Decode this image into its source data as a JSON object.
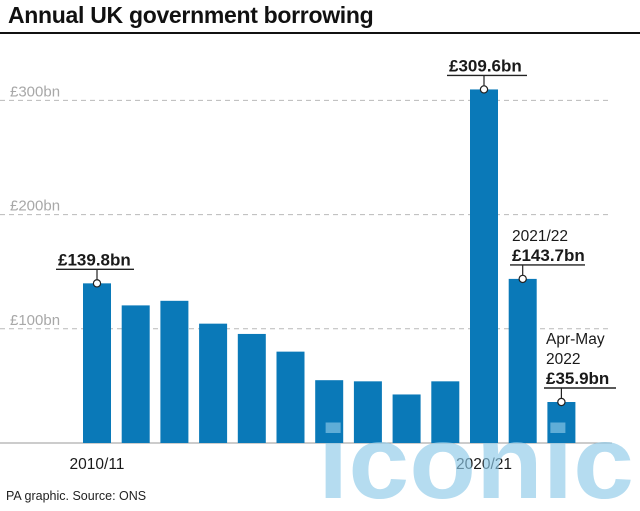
{
  "title": "Annual UK government borrowing",
  "source": "PA graphic. Source: ONS",
  "watermark": "iconic",
  "colors": {
    "bar": "#0a79b8",
    "grid": "#b9b9b9",
    "tick_label": "#a8a8a8",
    "text": "#1a1a1a",
    "watermark": "#8ec9e8"
  },
  "chart_data": {
    "type": "bar",
    "title": "Annual UK government borrowing",
    "xlabel": "",
    "ylabel": "",
    "ylim": [
      0,
      320
    ],
    "grid": true,
    "unit": "£bn",
    "yticks": [
      {
        "value": 100,
        "label": "£100bn"
      },
      {
        "value": 200,
        "label": "£200bn"
      },
      {
        "value": 300,
        "label": "£300bn"
      }
    ],
    "xticks": [
      {
        "index": 0,
        "label": "2010/11"
      },
      {
        "index": 10,
        "label": "2020/21"
      }
    ],
    "values": [
      139.8,
      120.5,
      124.5,
      104.5,
      95.5,
      80.0,
      55.0,
      54.0,
      42.5,
      54.0,
      309.6,
      143.7,
      35.9
    ],
    "annotations": [
      {
        "index": 0,
        "lines": [
          "£139.8bn"
        ]
      },
      {
        "index": 10,
        "lines": [
          "£309.6bn"
        ]
      },
      {
        "index": 11,
        "lines": [
          "2021/22",
          "£143.7bn"
        ]
      },
      {
        "index": 12,
        "lines": [
          "Apr-May",
          "2022",
          "£35.9bn"
        ]
      }
    ]
  }
}
